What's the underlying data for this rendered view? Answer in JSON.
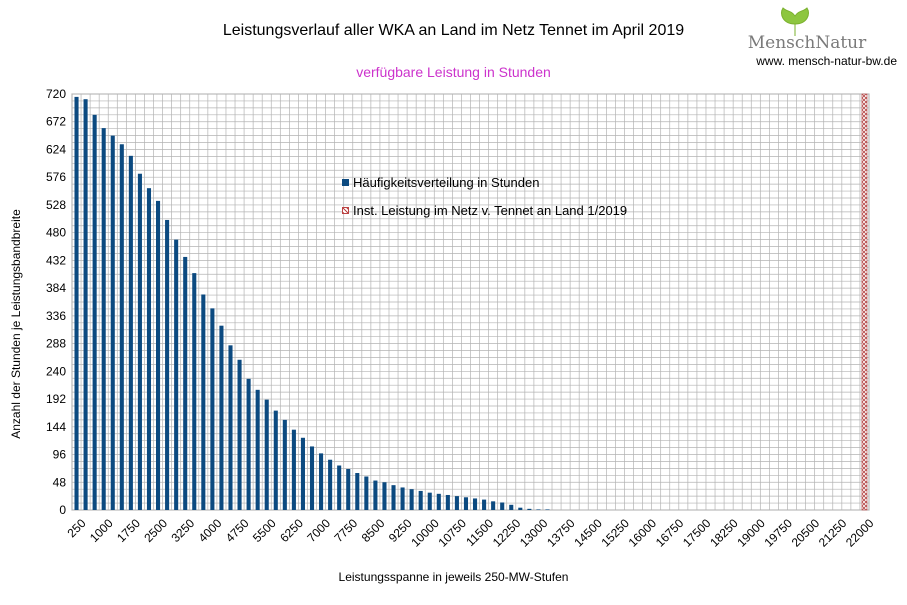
{
  "chart_data": {
    "type": "bar",
    "title": "Leistungsverlauf aller WKA an Land im Netz Tennet im April 2019",
    "subtitle": "verfügbare Leistung in Stunden",
    "xlabel": "Leistungsspanne in jeweils 250-MW-Stufen",
    "ylabel": "Anzahl der Stunden je Leistungsbandbreite",
    "ylim": [
      0,
      720
    ],
    "y_ticks": [
      0,
      48,
      96,
      144,
      192,
      240,
      288,
      336,
      384,
      432,
      480,
      528,
      576,
      624,
      672,
      720
    ],
    "x_tick_labels": [
      "250",
      "1000",
      "1750",
      "2500",
      "3250",
      "4000",
      "4750",
      "5500",
      "6250",
      "7000",
      "7750",
      "8500",
      "9250",
      "10000",
      "10750",
      "11500",
      "12250",
      "13000",
      "13750",
      "14500",
      "15250",
      "16000",
      "16750",
      "17500",
      "18250",
      "19000",
      "19750",
      "20500",
      "21250",
      "22000"
    ],
    "x_start": 250,
    "x_step": 250,
    "series": [
      {
        "name": "Häufigkeitsverteilung in Stunden",
        "color": "#0c4a80",
        "values": [
          715,
          711,
          684,
          661,
          648,
          633,
          613,
          582,
          557,
          535,
          502,
          468,
          438,
          410,
          373,
          349,
          319,
          285,
          260,
          227,
          208,
          191,
          172,
          156,
          139,
          125,
          110,
          98,
          87,
          77,
          71,
          64,
          58,
          51,
          48,
          43,
          39,
          36,
          33,
          30,
          28,
          26,
          24,
          22,
          20,
          18,
          15,
          13,
          9,
          4,
          2,
          1,
          1
        ]
      },
      {
        "name": "Inst. Leistung im Netz v. Tennet an Land 1/2019",
        "color": "#b44444",
        "x": 22000,
        "value": 720
      }
    ]
  },
  "logo": {
    "text": "MenschNatur",
    "url": "www. mensch-natur-bw.de",
    "color": "#8dc63f"
  }
}
